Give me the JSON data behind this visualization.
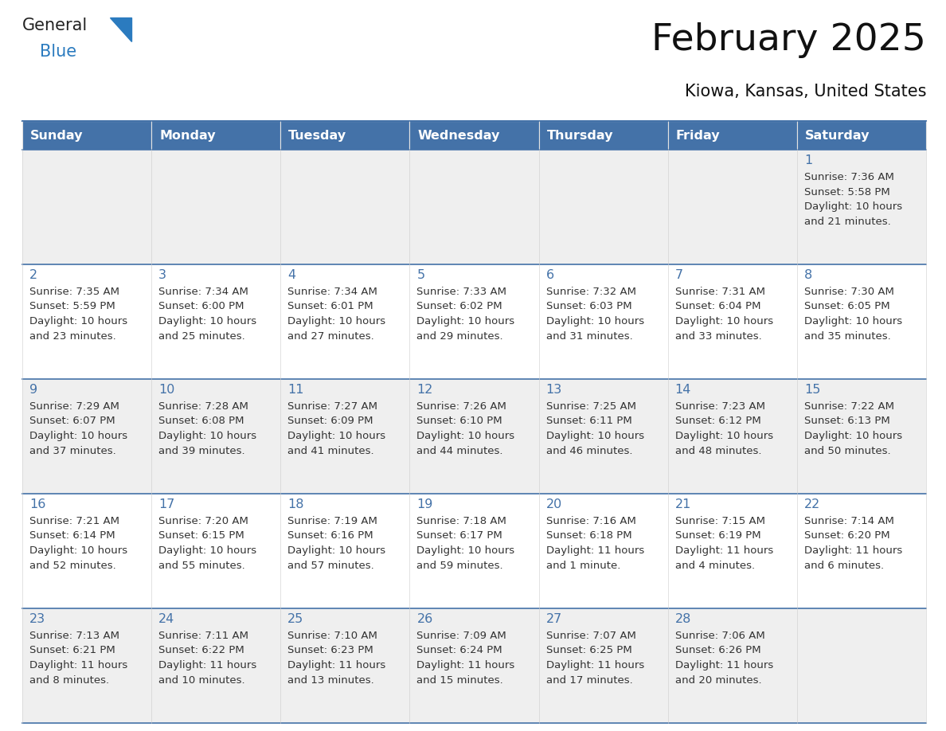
{
  "title": "February 2025",
  "subtitle": "Kiowa, Kansas, United States",
  "days_of_week": [
    "Sunday",
    "Monday",
    "Tuesday",
    "Wednesday",
    "Thursday",
    "Friday",
    "Saturday"
  ],
  "header_bg": "#4472a8",
  "header_text": "#ffffff",
  "row_bg_even": "#efefef",
  "row_bg_odd": "#ffffff",
  "cell_border": "#4472a8",
  "day_num_color": "#4472a8",
  "info_text_color": "#333333",
  "calendar_data": [
    {
      "day": 1,
      "col": 6,
      "row": 0,
      "sunrise": "7:36 AM",
      "sunset": "5:58 PM",
      "daylight_line1": "Daylight: 10 hours",
      "daylight_line2": "and 21 minutes."
    },
    {
      "day": 2,
      "col": 0,
      "row": 1,
      "sunrise": "7:35 AM",
      "sunset": "5:59 PM",
      "daylight_line1": "Daylight: 10 hours",
      "daylight_line2": "and 23 minutes."
    },
    {
      "day": 3,
      "col": 1,
      "row": 1,
      "sunrise": "7:34 AM",
      "sunset": "6:00 PM",
      "daylight_line1": "Daylight: 10 hours",
      "daylight_line2": "and 25 minutes."
    },
    {
      "day": 4,
      "col": 2,
      "row": 1,
      "sunrise": "7:34 AM",
      "sunset": "6:01 PM",
      "daylight_line1": "Daylight: 10 hours",
      "daylight_line2": "and 27 minutes."
    },
    {
      "day": 5,
      "col": 3,
      "row": 1,
      "sunrise": "7:33 AM",
      "sunset": "6:02 PM",
      "daylight_line1": "Daylight: 10 hours",
      "daylight_line2": "and 29 minutes."
    },
    {
      "day": 6,
      "col": 4,
      "row": 1,
      "sunrise": "7:32 AM",
      "sunset": "6:03 PM",
      "daylight_line1": "Daylight: 10 hours",
      "daylight_line2": "and 31 minutes."
    },
    {
      "day": 7,
      "col": 5,
      "row": 1,
      "sunrise": "7:31 AM",
      "sunset": "6:04 PM",
      "daylight_line1": "Daylight: 10 hours",
      "daylight_line2": "and 33 minutes."
    },
    {
      "day": 8,
      "col": 6,
      "row": 1,
      "sunrise": "7:30 AM",
      "sunset": "6:05 PM",
      "daylight_line1": "Daylight: 10 hours",
      "daylight_line2": "and 35 minutes."
    },
    {
      "day": 9,
      "col": 0,
      "row": 2,
      "sunrise": "7:29 AM",
      "sunset": "6:07 PM",
      "daylight_line1": "Daylight: 10 hours",
      "daylight_line2": "and 37 minutes."
    },
    {
      "day": 10,
      "col": 1,
      "row": 2,
      "sunrise": "7:28 AM",
      "sunset": "6:08 PM",
      "daylight_line1": "Daylight: 10 hours",
      "daylight_line2": "and 39 minutes."
    },
    {
      "day": 11,
      "col": 2,
      "row": 2,
      "sunrise": "7:27 AM",
      "sunset": "6:09 PM",
      "daylight_line1": "Daylight: 10 hours",
      "daylight_line2": "and 41 minutes."
    },
    {
      "day": 12,
      "col": 3,
      "row": 2,
      "sunrise": "7:26 AM",
      "sunset": "6:10 PM",
      "daylight_line1": "Daylight: 10 hours",
      "daylight_line2": "and 44 minutes."
    },
    {
      "day": 13,
      "col": 4,
      "row": 2,
      "sunrise": "7:25 AM",
      "sunset": "6:11 PM",
      "daylight_line1": "Daylight: 10 hours",
      "daylight_line2": "and 46 minutes."
    },
    {
      "day": 14,
      "col": 5,
      "row": 2,
      "sunrise": "7:23 AM",
      "sunset": "6:12 PM",
      "daylight_line1": "Daylight: 10 hours",
      "daylight_line2": "and 48 minutes."
    },
    {
      "day": 15,
      "col": 6,
      "row": 2,
      "sunrise": "7:22 AM",
      "sunset": "6:13 PM",
      "daylight_line1": "Daylight: 10 hours",
      "daylight_line2": "and 50 minutes."
    },
    {
      "day": 16,
      "col": 0,
      "row": 3,
      "sunrise": "7:21 AM",
      "sunset": "6:14 PM",
      "daylight_line1": "Daylight: 10 hours",
      "daylight_line2": "and 52 minutes."
    },
    {
      "day": 17,
      "col": 1,
      "row": 3,
      "sunrise": "7:20 AM",
      "sunset": "6:15 PM",
      "daylight_line1": "Daylight: 10 hours",
      "daylight_line2": "and 55 minutes."
    },
    {
      "day": 18,
      "col": 2,
      "row": 3,
      "sunrise": "7:19 AM",
      "sunset": "6:16 PM",
      "daylight_line1": "Daylight: 10 hours",
      "daylight_line2": "and 57 minutes."
    },
    {
      "day": 19,
      "col": 3,
      "row": 3,
      "sunrise": "7:18 AM",
      "sunset": "6:17 PM",
      "daylight_line1": "Daylight: 10 hours",
      "daylight_line2": "and 59 minutes."
    },
    {
      "day": 20,
      "col": 4,
      "row": 3,
      "sunrise": "7:16 AM",
      "sunset": "6:18 PM",
      "daylight_line1": "Daylight: 11 hours",
      "daylight_line2": "and 1 minute."
    },
    {
      "day": 21,
      "col": 5,
      "row": 3,
      "sunrise": "7:15 AM",
      "sunset": "6:19 PM",
      "daylight_line1": "Daylight: 11 hours",
      "daylight_line2": "and 4 minutes."
    },
    {
      "day": 22,
      "col": 6,
      "row": 3,
      "sunrise": "7:14 AM",
      "sunset": "6:20 PM",
      "daylight_line1": "Daylight: 11 hours",
      "daylight_line2": "and 6 minutes."
    },
    {
      "day": 23,
      "col": 0,
      "row": 4,
      "sunrise": "7:13 AM",
      "sunset": "6:21 PM",
      "daylight_line1": "Daylight: 11 hours",
      "daylight_line2": "and 8 minutes."
    },
    {
      "day": 24,
      "col": 1,
      "row": 4,
      "sunrise": "7:11 AM",
      "sunset": "6:22 PM",
      "daylight_line1": "Daylight: 11 hours",
      "daylight_line2": "and 10 minutes."
    },
    {
      "day": 25,
      "col": 2,
      "row": 4,
      "sunrise": "7:10 AM",
      "sunset": "6:23 PM",
      "daylight_line1": "Daylight: 11 hours",
      "daylight_line2": "and 13 minutes."
    },
    {
      "day": 26,
      "col": 3,
      "row": 4,
      "sunrise": "7:09 AM",
      "sunset": "6:24 PM",
      "daylight_line1": "Daylight: 11 hours",
      "daylight_line2": "and 15 minutes."
    },
    {
      "day": 27,
      "col": 4,
      "row": 4,
      "sunrise": "7:07 AM",
      "sunset": "6:25 PM",
      "daylight_line1": "Daylight: 11 hours",
      "daylight_line2": "and 17 minutes."
    },
    {
      "day": 28,
      "col": 5,
      "row": 4,
      "sunrise": "7:06 AM",
      "sunset": "6:26 PM",
      "daylight_line1": "Daylight: 11 hours",
      "daylight_line2": "and 20 minutes."
    }
  ],
  "fig_width": 11.88,
  "fig_height": 9.18,
  "dpi": 100
}
